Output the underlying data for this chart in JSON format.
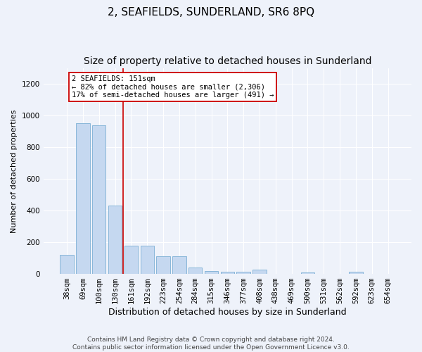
{
  "title": "2, SEAFIELDS, SUNDERLAND, SR6 8PQ",
  "subtitle": "Size of property relative to detached houses in Sunderland",
  "xlabel": "Distribution of detached houses by size in Sunderland",
  "ylabel": "Number of detached properties",
  "categories": [
    "38sqm",
    "69sqm",
    "100sqm",
    "130sqm",
    "161sqm",
    "192sqm",
    "223sqm",
    "254sqm",
    "284sqm",
    "315sqm",
    "346sqm",
    "377sqm",
    "408sqm",
    "438sqm",
    "469sqm",
    "500sqm",
    "531sqm",
    "562sqm",
    "592sqm",
    "623sqm",
    "654sqm"
  ],
  "values": [
    120,
    950,
    940,
    430,
    180,
    180,
    110,
    110,
    40,
    20,
    15,
    15,
    25,
    0,
    0,
    10,
    0,
    0,
    15,
    0,
    0
  ],
  "bar_color": "#c5d8f0",
  "bar_edgecolor": "#7bafd4",
  "vline_x": 3.5,
  "vline_color": "#cc0000",
  "annotation_line1": "2 SEAFIELDS: 151sqm",
  "annotation_line2": "← 82% of detached houses are smaller (2,306)",
  "annotation_line3": "17% of semi-detached houses are larger (491) →",
  "annotation_box_color": "#cc0000",
  "ylim": [
    0,
    1300
  ],
  "yticks": [
    0,
    200,
    400,
    600,
    800,
    1000,
    1200
  ],
  "background_color": "#eef2fa",
  "grid_color": "#ffffff",
  "footer": "Contains HM Land Registry data © Crown copyright and database right 2024.\nContains public sector information licensed under the Open Government Licence v3.0.",
  "title_fontsize": 11,
  "subtitle_fontsize": 10,
  "xlabel_fontsize": 9,
  "ylabel_fontsize": 8,
  "tick_fontsize": 7.5,
  "annotation_fontsize": 7.5,
  "footer_fontsize": 6.5
}
